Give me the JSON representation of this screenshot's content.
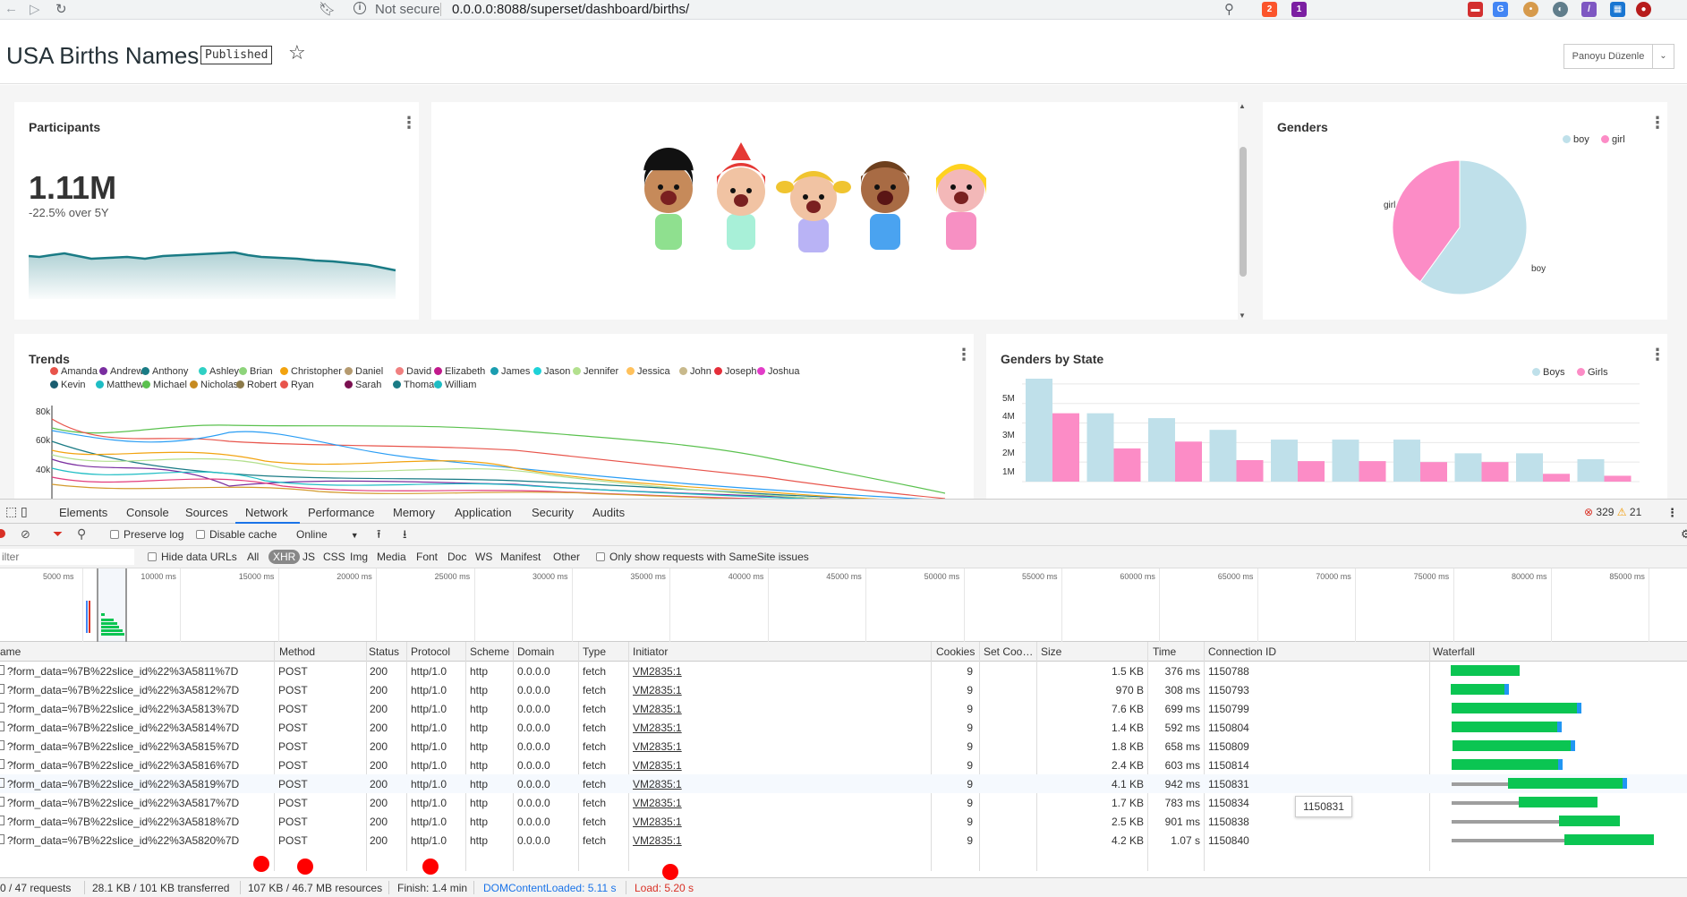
{
  "browser": {
    "security": "Not secure",
    "url": "0.0.0.0:8088/superset/dashboard/births/"
  },
  "header": {
    "title": "USA Births Names",
    "status": "Published",
    "edit_label": "Panoyu Düzenle"
  },
  "participants": {
    "title": "Participants",
    "value": "1.11M",
    "subheader": "-22.5% over 5Y"
  },
  "genders": {
    "title": "Genders",
    "legend": [
      "boy",
      "girl"
    ],
    "label_girl": "girl",
    "label_boy": "boy"
  },
  "trends": {
    "title": "Trends",
    "legend": [
      "Amanda",
      "Andrew",
      "Anthony",
      "Ashley",
      "Brian",
      "Christopher",
      "Daniel",
      "David",
      "Elizabeth",
      "James",
      "Jason",
      "Jennifer",
      "Jessica",
      "John",
      "Joseph",
      "Joshua",
      "Kevin",
      "Matthew",
      "Michael",
      "Nicholas",
      "Robert",
      "Ryan",
      "Sarah",
      "Thomas",
      "William"
    ],
    "yticks": [
      "80k",
      "60k",
      "40k"
    ]
  },
  "gbs": {
    "title": "Genders by State",
    "legend": [
      "Boys",
      "Girls"
    ],
    "yticks": [
      "5M",
      "4M",
      "3M",
      "2M",
      "1M"
    ]
  },
  "chart_data": [
    {
      "type": "pie",
      "title": "Genders",
      "categories": [
        "boy",
        "girl"
      ],
      "values": [
        0.6,
        0.4
      ]
    },
    {
      "type": "bar",
      "title": "Genders by State",
      "ylim": [
        0,
        5500000
      ],
      "series": [
        {
          "name": "Boys",
          "values": [
            5300000,
            3500000,
            3250000,
            2650000,
            2150000,
            2150000,
            2150000,
            1450000,
            1450000,
            1150000
          ]
        },
        {
          "name": "Girls",
          "values": [
            3500000,
            1700000,
            2050000,
            1100000,
            1050000,
            1050000,
            1000000,
            1000000,
            400000,
            300000
          ]
        }
      ]
    }
  ],
  "devtools": {
    "tabs": [
      "Elements",
      "Console",
      "Sources",
      "Network",
      "Performance",
      "Memory",
      "Application",
      "Security",
      "Audits"
    ],
    "errors": "329",
    "warnings": "21",
    "toolbar": {
      "preserve_log": "Preserve log",
      "disable_cache": "Disable cache",
      "throttle": "Online"
    },
    "filter": {
      "placeholder": "ilter",
      "hide_data_urls": "Hide data URLs",
      "types": [
        "All",
        "XHR",
        "JS",
        "CSS",
        "Img",
        "Media",
        "Font",
        "Doc",
        "WS",
        "Manifest",
        "Other"
      ],
      "samesite": "Only show requests with SameSite issues"
    },
    "overview_ticks": [
      "5000 ms",
      "10000 ms",
      "15000 ms",
      "20000 ms",
      "25000 ms",
      "30000 ms",
      "35000 ms",
      "40000 ms",
      "45000 ms",
      "50000 ms",
      "55000 ms",
      "60000 ms",
      "65000 ms",
      "70000 ms",
      "75000 ms",
      "80000 ms",
      "85000 ms"
    ],
    "columns": [
      "ame",
      "Method",
      "Status",
      "Protocol",
      "Scheme",
      "Domain",
      "Type",
      "Initiator",
      "Cookies",
      "Set Coo…",
      "Size",
      "Time",
      "Connection ID",
      "Waterfall"
    ],
    "rows": [
      {
        "name": "?form_data=%7B%22slice_id%22%3A5811%7D",
        "method": "POST",
        "status": "200",
        "protocol": "http/1.0",
        "scheme": "http",
        "domain": "0.0.0.0",
        "type": "fetch",
        "initiator": "VM2835:1",
        "cookies": "9",
        "size": "1.5 KB",
        "time": "376 ms",
        "conn": "1150788"
      },
      {
        "name": "?form_data=%7B%22slice_id%22%3A5812%7D",
        "method": "POST",
        "status": "200",
        "protocol": "http/1.0",
        "scheme": "http",
        "domain": "0.0.0.0",
        "type": "fetch",
        "initiator": "VM2835:1",
        "cookies": "9",
        "size": "970 B",
        "time": "308 ms",
        "conn": "1150793"
      },
      {
        "name": "?form_data=%7B%22slice_id%22%3A5813%7D",
        "method": "POST",
        "status": "200",
        "protocol": "http/1.0",
        "scheme": "http",
        "domain": "0.0.0.0",
        "type": "fetch",
        "initiator": "VM2835:1",
        "cookies": "9",
        "size": "7.6 KB",
        "time": "699 ms",
        "conn": "1150799"
      },
      {
        "name": "?form_data=%7B%22slice_id%22%3A5814%7D",
        "method": "POST",
        "status": "200",
        "protocol": "http/1.0",
        "scheme": "http",
        "domain": "0.0.0.0",
        "type": "fetch",
        "initiator": "VM2835:1",
        "cookies": "9",
        "size": "1.4 KB",
        "time": "592 ms",
        "conn": "1150804"
      },
      {
        "name": "?form_data=%7B%22slice_id%22%3A5815%7D",
        "method": "POST",
        "status": "200",
        "protocol": "http/1.0",
        "scheme": "http",
        "domain": "0.0.0.0",
        "type": "fetch",
        "initiator": "VM2835:1",
        "cookies": "9",
        "size": "1.8 KB",
        "time": "658 ms",
        "conn": "1150809"
      },
      {
        "name": "?form_data=%7B%22slice_id%22%3A5816%7D",
        "method": "POST",
        "status": "200",
        "protocol": "http/1.0",
        "scheme": "http",
        "domain": "0.0.0.0",
        "type": "fetch",
        "initiator": "VM2835:1",
        "cookies": "9",
        "size": "2.4 KB",
        "time": "603 ms",
        "conn": "1150814"
      },
      {
        "name": "?form_data=%7B%22slice_id%22%3A5819%7D",
        "method": "POST",
        "status": "200",
        "protocol": "http/1.0",
        "scheme": "http",
        "domain": "0.0.0.0",
        "type": "fetch",
        "initiator": "VM2835:1",
        "cookies": "9",
        "size": "4.1 KB",
        "time": "942 ms",
        "conn": "1150831"
      },
      {
        "name": "?form_data=%7B%22slice_id%22%3A5817%7D",
        "method": "POST",
        "status": "200",
        "protocol": "http/1.0",
        "scheme": "http",
        "domain": "0.0.0.0",
        "type": "fetch",
        "initiator": "VM2835:1",
        "cookies": "9",
        "size": "1.7 KB",
        "time": "783 ms",
        "conn": "1150834"
      },
      {
        "name": "?form_data=%7B%22slice_id%22%3A5818%7D",
        "method": "POST",
        "status": "200",
        "protocol": "http/1.0",
        "scheme": "http",
        "domain": "0.0.0.0",
        "type": "fetch",
        "initiator": "VM2835:1",
        "cookies": "9",
        "size": "2.5 KB",
        "time": "901 ms",
        "conn": "1150838"
      },
      {
        "name": "?form_data=%7B%22slice_id%22%3A5820%7D",
        "method": "POST",
        "status": "200",
        "protocol": "http/1.0",
        "scheme": "http",
        "domain": "0.0.0.0",
        "type": "fetch",
        "initiator": "VM2835:1",
        "cookies": "9",
        "size": "4.2 KB",
        "time": "1.07 s",
        "conn": "1150840"
      }
    ],
    "tooltip": "1150831",
    "status": {
      "requests": "0 / 47 requests",
      "transferred": "28.1 KB / 101 KB transferred",
      "resources": "107 KB / 46.7 MB resources",
      "finish": "Finish: 1.4 min",
      "dcl": "DOMContentLoaded: 5.11 s",
      "load": "Load: 5.20 s"
    }
  }
}
